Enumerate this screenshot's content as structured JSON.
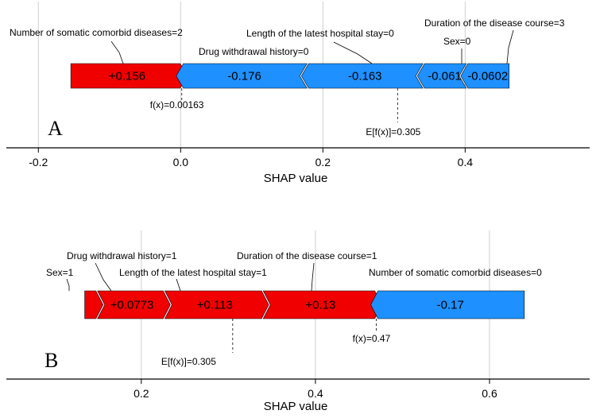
{
  "colors": {
    "positive": "#f00000",
    "negative": "#1e90ff"
  },
  "chart_data": [
    {
      "type": "force",
      "panel": "A",
      "xlabel": "SHAP value",
      "xlim": [
        -0.245,
        0.575
      ],
      "ticks": [
        -0.2,
        0.0,
        0.2,
        0.4
      ],
      "tick_labels": [
        "-0.2",
        "0.0",
        "0.2",
        "0.4"
      ],
      "fx": 0.00163,
      "fx_label": "f(x)=0.00163",
      "base_value": 0.305,
      "base_label": "E[f(x)]=0.305",
      "segments": [
        {
          "feature": "Number of somatic comorbid diseases=2",
          "value": 0.156,
          "label": "+0.156"
        },
        {
          "feature": "Drug withdrawal history=0",
          "value": -0.176,
          "label": "-0.176"
        },
        {
          "feature": "Length of the latest hospital stay=0",
          "value": -0.163,
          "label": "-0.163"
        },
        {
          "feature": "Sex=0",
          "value": -0.061,
          "label": "-0.061"
        },
        {
          "feature": "Duration of the disease course=3",
          "value": -0.0602,
          "label": "-0.0602"
        }
      ]
    },
    {
      "type": "force",
      "panel": "B",
      "xlabel": "SHAP value",
      "xlim": [
        0.045,
        0.715
      ],
      "ticks": [
        0.2,
        0.4,
        0.6
      ],
      "tick_labels": [
        "0.2",
        "0.4",
        "0.6"
      ],
      "fx": 0.47,
      "fx_label": "f(x)=0.47",
      "base_value": 0.305,
      "base_label": "E[f(x)]=0.305",
      "segments": [
        {
          "feature": "Sex=1",
          "value": 0.0147,
          "label": ""
        },
        {
          "feature": "Drug withdrawal history=1",
          "value": 0.0773,
          "label": "+0.0773"
        },
        {
          "feature": "Length of the latest hospital stay=1",
          "value": 0.113,
          "label": "+0.113"
        },
        {
          "feature": "Duration of the disease course=1",
          "value": 0.13,
          "label": "+0.13"
        },
        {
          "feature": "Number of somatic comorbid diseases=0",
          "value": -0.17,
          "label": "-0.17"
        }
      ]
    }
  ]
}
